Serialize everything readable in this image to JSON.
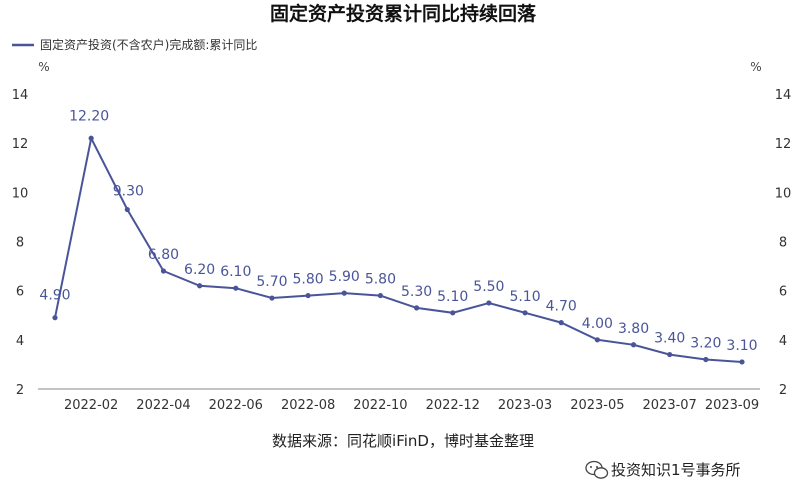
{
  "chart_data": {
    "type": "line",
    "title": "固定资产投资累计同比持续回落",
    "series": [
      {
        "name": "固定资产投资(不含农户)完成额:累计同比",
        "color": "#4a5599",
        "values": [
          4.9,
          12.2,
          9.3,
          6.8,
          6.2,
          6.1,
          5.7,
          5.8,
          5.9,
          5.8,
          5.3,
          5.1,
          5.5,
          5.1,
          4.7,
          4.0,
          3.8,
          3.4,
          3.2,
          3.1
        ]
      }
    ],
    "data_labels": [
      "4.90",
      "12.20",
      "9.30",
      "6.80",
      "6.20",
      "6.10",
      "5.70",
      "5.80",
      "5.90",
      "5.80",
      "5.30",
      "5.10",
      "5.50",
      "5.10",
      "4.70",
      "4.00",
      "3.80",
      "3.40",
      "3.20",
      "3.10"
    ],
    "x_tick_labels": [
      "2022-02",
      "2022-04",
      "2022-06",
      "2022-08",
      "2022-10",
      "2022-12",
      "2023-03",
      "2023-05",
      "2023-07",
      "2023-09"
    ],
    "y_ticks": [
      "2",
      "4",
      "6",
      "8",
      "10",
      "12",
      "14"
    ],
    "ylim": [
      2,
      14
    ],
    "y_unit_left": "%",
    "y_unit_right": "%",
    "grid": false,
    "legend_position": "top-left",
    "source": "数据来源：同花顺iFinD，博时基金整理",
    "watermark": "投资知识1号事务所"
  }
}
